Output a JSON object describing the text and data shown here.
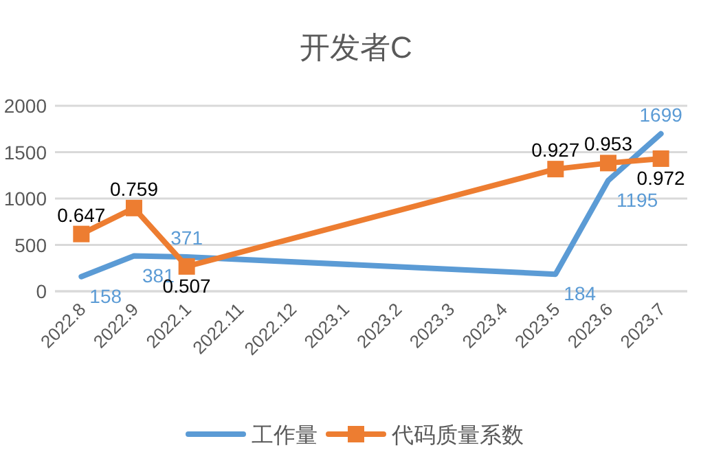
{
  "chart_data": {
    "type": "line",
    "title": "开发者C",
    "categories": [
      "2022.8",
      "2022.9",
      "2022.1",
      "2022.11",
      "2022.12",
      "2023.1",
      "2023.2",
      "2023.3",
      "2023.4",
      "2023.5",
      "2023.6",
      "2023.7"
    ],
    "series": [
      {
        "name": "工作量",
        "color": "#5b9bd5",
        "marker": "none",
        "values": [
          158,
          381,
          371,
          null,
          null,
          null,
          null,
          null,
          null,
          184,
          1195,
          1699
        ],
        "value_labels": [
          "158",
          "381",
          "371",
          null,
          null,
          null,
          null,
          null,
          null,
          "184",
          "1195",
          "1699"
        ]
      },
      {
        "name": "代码质量系数",
        "color": "#ed7d31",
        "marker": "square",
        "axis": "y2",
        "values": [
          0.647,
          0.759,
          0.507,
          null,
          null,
          null,
          null,
          null,
          null,
          0.927,
          0.953,
          0.972
        ],
        "value_labels": [
          "0.647",
          "0.759",
          "0.507",
          null,
          null,
          null,
          null,
          null,
          null,
          "0.927",
          "0.953",
          "0.972"
        ]
      }
    ],
    "ylim": [
      0,
      2000
    ],
    "yticks": [
      0,
      500,
      1000,
      1500,
      2000
    ],
    "y2lim": [
      0.4,
      1.2
    ],
    "grid": "y",
    "legend": "bottom",
    "line_style": "solid"
  }
}
